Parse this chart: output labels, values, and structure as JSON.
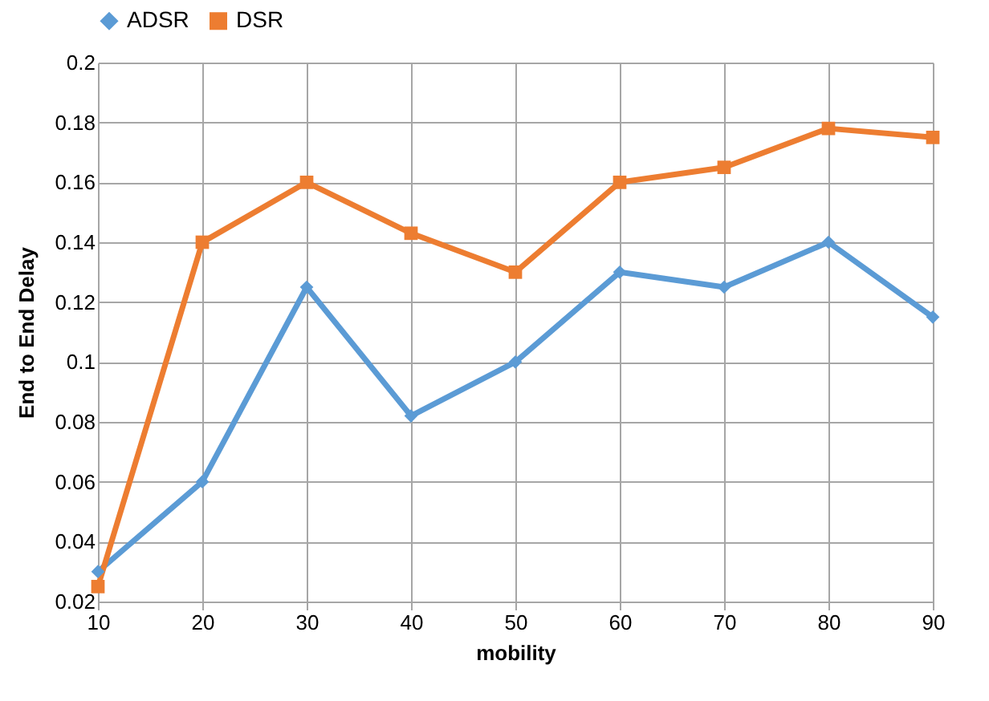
{
  "chart_data": {
    "type": "line",
    "xlabel": "mobility",
    "ylabel": "End to End Delay",
    "x": [
      10,
      20,
      30,
      40,
      50,
      60,
      70,
      80,
      90
    ],
    "series": [
      {
        "name": "ADSR",
        "color": "#5b9bd5",
        "marker": "diamond",
        "values": [
          0.03,
          0.06,
          0.125,
          0.082,
          0.1,
          0.13,
          0.125,
          0.14,
          0.115
        ]
      },
      {
        "name": "DSR",
        "color": "#ed7d31",
        "marker": "square",
        "values": [
          0.025,
          0.14,
          0.16,
          0.143,
          0.13,
          0.16,
          0.165,
          0.178,
          0.175
        ]
      }
    ],
    "xlim": [
      10,
      90
    ],
    "xticks": [
      10,
      20,
      30,
      40,
      50,
      60,
      70,
      80,
      90
    ],
    "ylim": [
      0.02,
      0.2
    ],
    "yticks": [
      0.02,
      0.04,
      0.06,
      0.08,
      0.1,
      0.12,
      0.14,
      0.16,
      0.18,
      0.2
    ],
    "grid": true,
    "legend": "top",
    "line_style": "solid"
  }
}
